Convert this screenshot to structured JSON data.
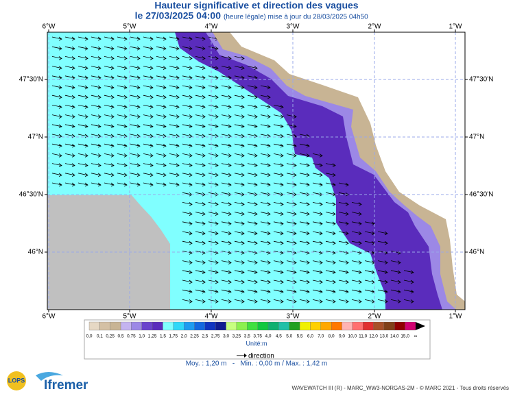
{
  "header": {
    "title": "Hauteur significative et direction des vagues",
    "date": "le 27/03/2025 04:00",
    "subtitle": "(heure légale) mise à jour du 28/03/2025 04h50"
  },
  "map": {
    "lon_labels": [
      "6°W",
      "5°W",
      "4°W",
      "3°W",
      "2°W",
      "1°W"
    ],
    "lat_labels": [
      "47°30'N",
      "47°N",
      "46°30'N",
      "46°N"
    ]
  },
  "colorbar": {
    "labels": [
      "0,0",
      "0,1",
      "0,25",
      "0,5",
      "0,75",
      "1,0",
      "1,25",
      "1,5",
      "1,75",
      "2,0",
      "2,25",
      "2,5",
      "2,75",
      "3,0",
      "3,25",
      "3,5",
      "3,75",
      "4,0",
      "4,5",
      "5,0",
      "5,5",
      "6,0",
      "7,0",
      "8,0",
      "9,0",
      "10,0",
      "11,0",
      "12,0",
      "13,0",
      "14,0",
      "15,0",
      "∞"
    ],
    "colors": [
      "#e6d8c4",
      "#d4c0a4",
      "#c8b494",
      "#c4b4f0",
      "#9c88e6",
      "#6a44cc",
      "#5a2cbc",
      "#80ffff",
      "#30d8f8",
      "#1e9cf0",
      "#1468e0",
      "#1034c0",
      "#101c90",
      "#c8ff80",
      "#8cf050",
      "#40e040",
      "#10c840",
      "#10b070",
      "#20c0a8",
      "#20a020",
      "#f0f000",
      "#ffd000",
      "#ffa800",
      "#ff7800",
      "#ffb4b4",
      "#ff7070",
      "#e03030",
      "#a85028",
      "#804018",
      "#900000",
      "#d00070"
    ],
    "unit": "Unité:m"
  },
  "legend": {
    "direction": "direction"
  },
  "stats": "Moy. : 1,20 m   -   Min. : 0,00 m / Max. : 1,42 m",
  "footer": {
    "credit": "WAVEWATCH III (R) - MARC_WW3-NORGAS-2M - © MARC 2021 - Tous droits réservés",
    "logo_lops": "LOPS",
    "logo_ifremer": "Ifremer"
  }
}
